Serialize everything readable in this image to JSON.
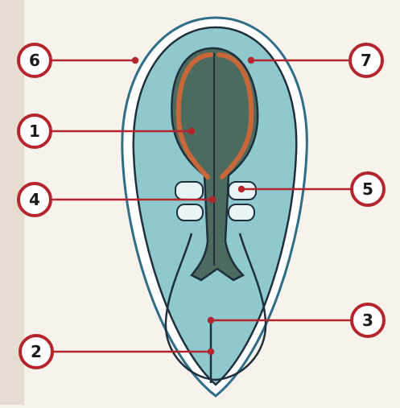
{
  "labels": {
    "l1": "1",
    "l2": "2",
    "l3": "3",
    "l4": "4",
    "l5": "5",
    "l6": "6",
    "l7": "7"
  },
  "colors": {
    "background": "#f7f3ec",
    "outer_shell": "#2f6e86",
    "shell_gap": "#ffffff",
    "embryo_field": "#8fc9cf",
    "neural_plate": "#4d6a5f",
    "neural_fold": "#c8683a",
    "somites": "#e7f5f6",
    "outline": "#1f2f3c",
    "leader_line": "#b5252d",
    "marker_ring": "#b5252d",
    "marker_fill": "#ffffff",
    "marker_text": "#1a1a1a"
  },
  "icons": {
    "dots": "red-dot-marker"
  }
}
